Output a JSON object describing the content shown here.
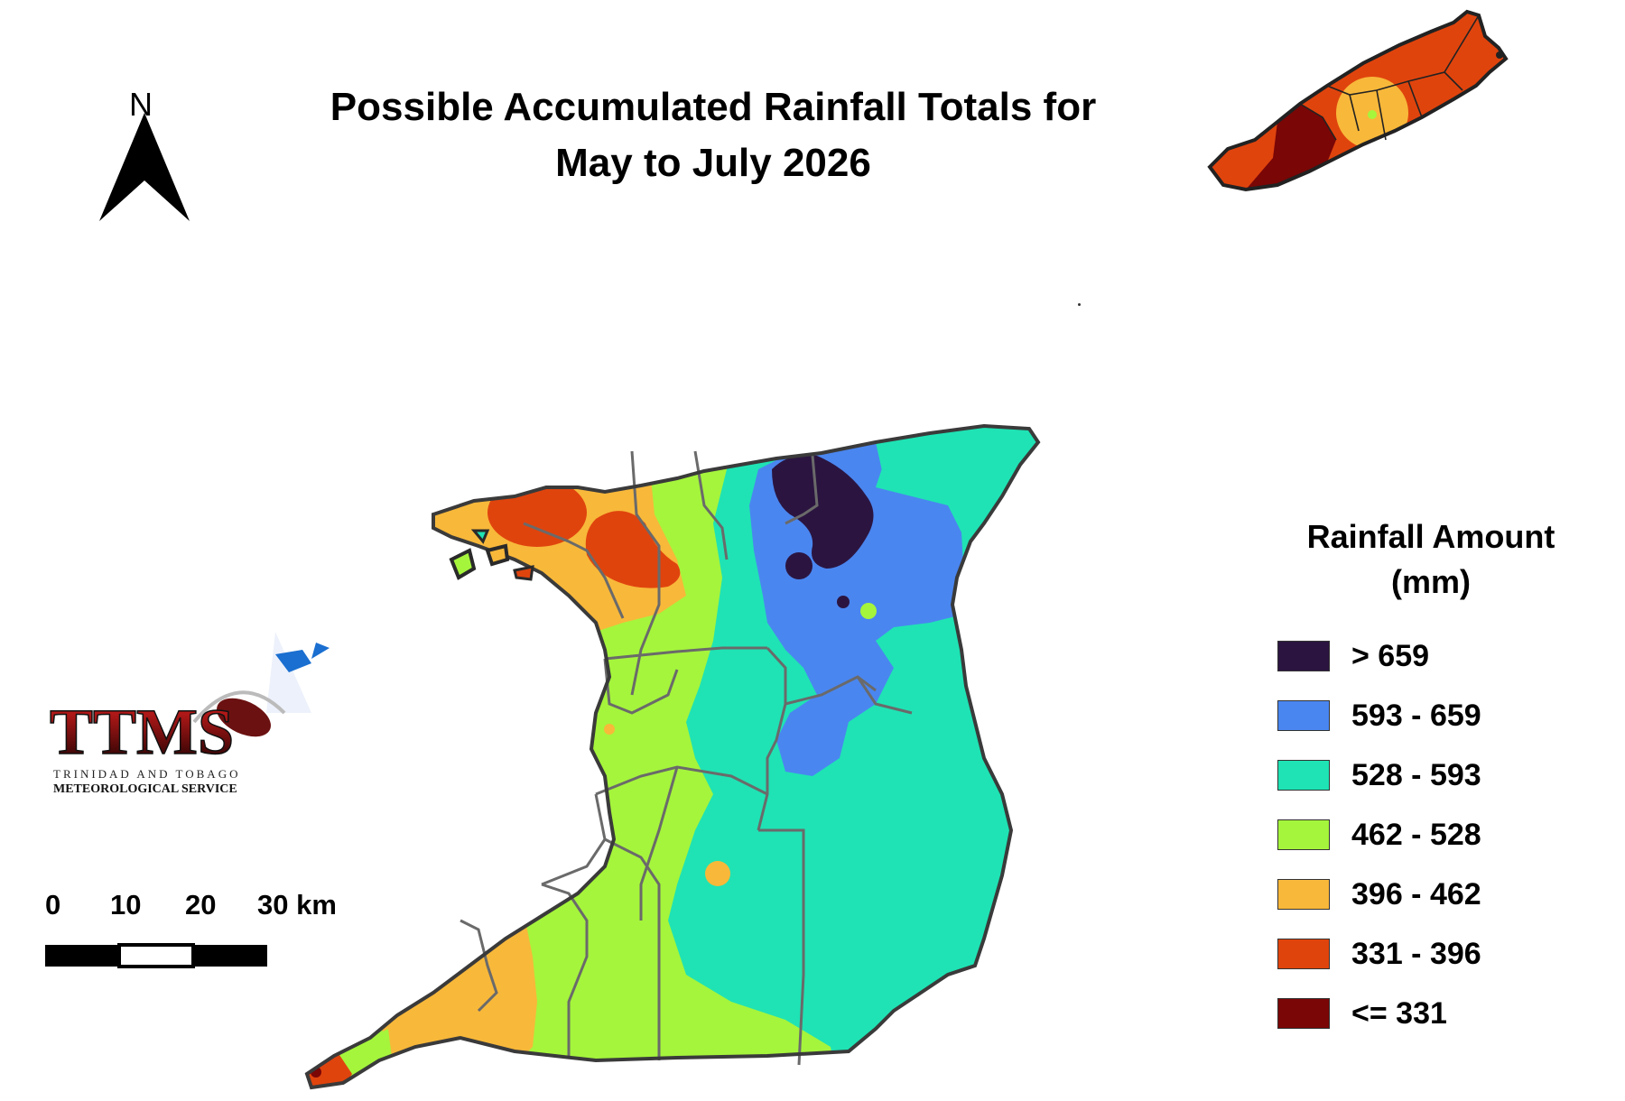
{
  "title": {
    "line1": "Possible Accumulated Rainfall Totals for",
    "line2": "May to July 2026"
  },
  "north_arrow": {
    "label": "N"
  },
  "logo": {
    "text": "TTMS",
    "sub_line1": "TRINIDAD AND TOBAGO",
    "sub_line2": "METEOROLOGICAL SERVICE"
  },
  "scale": {
    "labels": [
      "0",
      "10",
      "20",
      "30 km"
    ]
  },
  "legend": {
    "title_line1": "Rainfall Amount",
    "title_line2": "(mm)",
    "items": [
      {
        "label": "> 659",
        "color": "#2b1540"
      },
      {
        "label": "593 - 659",
        "color": "#4a86f0"
      },
      {
        "label": "528 - 593",
        "color": "#1fe3b4"
      },
      {
        "label": "462 - 528",
        "color": "#a5f53c"
      },
      {
        "label": "396 - 462",
        "color": "#f8b83a"
      },
      {
        "label": "331 - 396",
        "color": "#e0440d"
      },
      {
        "label": "<= 331",
        "color": "#7a0606"
      }
    ]
  },
  "map_colors": {
    "boundary": "#5a5a5a",
    "coast": "#2a2a2a"
  }
}
